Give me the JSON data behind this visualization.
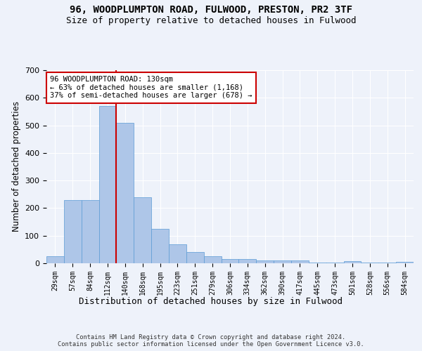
{
  "title_line1": "96, WOODPLUMPTON ROAD, FULWOOD, PRESTON, PR2 3TF",
  "title_line2": "Size of property relative to detached houses in Fulwood",
  "xlabel": "Distribution of detached houses by size in Fulwood",
  "ylabel": "Number of detached properties",
  "categories": [
    "29sqm",
    "57sqm",
    "84sqm",
    "112sqm",
    "140sqm",
    "168sqm",
    "195sqm",
    "223sqm",
    "251sqm",
    "279sqm",
    "306sqm",
    "334sqm",
    "362sqm",
    "390sqm",
    "417sqm",
    "445sqm",
    "473sqm",
    "501sqm",
    "528sqm",
    "556sqm",
    "584sqm"
  ],
  "values": [
    25,
    230,
    230,
    570,
    510,
    240,
    125,
    70,
    40,
    25,
    15,
    15,
    10,
    10,
    10,
    2,
    2,
    8,
    2,
    2,
    5
  ],
  "bar_color": "#aec6e8",
  "bar_edge_color": "#5b9bd5",
  "vline_color": "#cc0000",
  "vline_index": 4,
  "annotation_text": "96 WOODPLUMPTON ROAD: 130sqm\n← 63% of detached houses are smaller (1,168)\n37% of semi-detached houses are larger (678) →",
  "annotation_box_color": "#ffffff",
  "annotation_box_edge_color": "#cc0000",
  "footnote": "Contains HM Land Registry data © Crown copyright and database right 2024.\nContains public sector information licensed under the Open Government Licence v3.0.",
  "ylim": [
    0,
    700
  ],
  "background_color": "#eef2fa",
  "grid_color": "#ffffff",
  "title1_fontsize": 10,
  "title2_fontsize": 9,
  "xlabel_fontsize": 9,
  "ylabel_fontsize": 8.5
}
